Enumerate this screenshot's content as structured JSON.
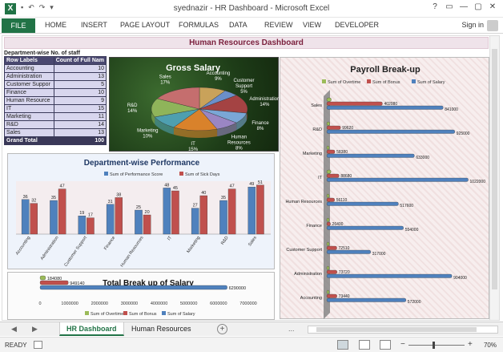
{
  "window": {
    "app_badge": "X",
    "title": "syednazir - HR Dashboard - Microsoft Excel",
    "controls": [
      "?",
      "▭",
      "—",
      "▢",
      "✕"
    ]
  },
  "ribbon": {
    "tabs": [
      "FILE",
      "HOME",
      "INSERT",
      "PAGE LAYOUT",
      "FORMULAS",
      "DATA",
      "REVIEW",
      "VIEW",
      "DEVELOPER"
    ],
    "signin": "Sign in"
  },
  "dashboard": {
    "title": "Human Resources Dashboard"
  },
  "pivot": {
    "caption": "Department-wise No. of staff",
    "header": [
      "Row Labels",
      "Count of Full Nam"
    ],
    "rows": [
      [
        "Accounting",
        "10"
      ],
      [
        "Administration",
        "13"
      ],
      [
        "Customer Suppor",
        "5"
      ],
      [
        "Finance",
        "10"
      ],
      [
        "Human Resource",
        "9"
      ],
      [
        "IT",
        "15"
      ],
      [
        "Marketing",
        "11"
      ],
      [
        "R&D",
        "14"
      ],
      [
        "Sales",
        "13"
      ]
    ],
    "total": [
      "Grand Total",
      "100"
    ]
  },
  "chart_data": [
    {
      "type": "pie",
      "title": "Gross Salary",
      "categories": [
        "Accounting",
        "Customer Support",
        "Administration",
        "Finance",
        "Human Resources",
        "IT",
        "Marketing",
        "R&D",
        "Sales"
      ],
      "values": [
        9,
        5,
        14,
        8,
        8,
        15,
        10,
        14,
        17
      ],
      "labels": [
        "Accounting\n9%",
        "Customer\nSupport\n5%",
        "Administration\n14%",
        "Finance\n8%",
        "Human\nResources\n8%",
        "IT\n15%",
        "Marketing\n10%",
        "R&D\n14%",
        "Sales\n17%"
      ]
    },
    {
      "type": "bar",
      "title": "Department-wise Performance",
      "categories": [
        "Accounting",
        "Administration",
        "Customer Support",
        "Finance",
        "Human Resources",
        "IT",
        "Marketing",
        "R&D",
        "Sales"
      ],
      "series": [
        {
          "name": "Sum of Performance Score",
          "values": [
            36,
            35,
            19,
            31,
            25,
            48,
            27,
            35,
            49
          ],
          "color": "#4f81bd"
        },
        {
          "name": "Sum of Sick Days",
          "values": [
            32,
            47,
            17,
            38,
            20,
            45,
            40,
            47,
            51
          ],
          "color": "#c0504d"
        }
      ],
      "ylim": [
        0,
        55
      ],
      "legend": "top"
    },
    {
      "type": "bar",
      "orientation": "horizontal",
      "title": "Total Break up of Salary",
      "categories": [
        "Total"
      ],
      "series": [
        {
          "name": "Sum of Overtime",
          "values": [
            184080
          ],
          "color": "#9bbb59"
        },
        {
          "name": "Sum of Bonus",
          "values": [
            949140
          ],
          "color": "#c0504d"
        },
        {
          "name": "Sum of Salary",
          "values": [
            6290000
          ],
          "color": "#4f81bd"
        }
      ],
      "xticks": [
        "0",
        "1000000",
        "2000000",
        "3000000",
        "4000000",
        "5000000",
        "6000000",
        "7000000"
      ],
      "xlim": [
        0,
        7000000
      ],
      "legend": "bottom"
    },
    {
      "type": "bar",
      "orientation": "horizontal",
      "title": "Payroll Break-up",
      "categories": [
        "Sales",
        "R&D",
        "Marketing",
        "IT",
        "Human Resources",
        "Finance",
        "Customer Support",
        "Administration",
        "Accounting"
      ],
      "series": [
        {
          "name": "Sum of Overtime",
          "values": [
            32000,
            22000,
            17000,
            30000,
            13000,
            15000,
            11000,
            17000,
            15000
          ],
          "color": "#9bbb59"
        },
        {
          "name": "Sum of Bonus",
          "values": [
            402080,
            99620,
            58380,
            88680,
            56110,
            26400,
            72510,
            73720,
            73440
          ],
          "color": "#c0504d"
        },
        {
          "name": "Sum of Salary",
          "values": [
            841000,
            925000,
            633000,
            1022000,
            517600,
            554000,
            317000,
            904000,
            572000
          ],
          "color": "#4f81bd"
        }
      ],
      "value_labels_shown": [
        [
          "402080",
          "841000"
        ],
        [
          "99620",
          "925000"
        ],
        [
          "58380",
          "633000"
        ],
        [
          "88680",
          "1022000"
        ],
        [
          "56110",
          "517600"
        ],
        [
          "26400",
          "554000"
        ],
        [
          "72510",
          "317000"
        ],
        [
          "73720",
          "904000"
        ],
        [
          "73440",
          "572000"
        ]
      ],
      "xlim": [
        0,
        1100000
      ],
      "legend": "top"
    }
  ],
  "sheet_tabs": {
    "tabs": [
      "HR Dashboard",
      "Human Resources"
    ],
    "active": "HR Dashboard",
    "add": "+",
    "nav": [
      "◀",
      "▶"
    ],
    "more": "..."
  },
  "status": {
    "ready": "READY",
    "zoom": "70%",
    "zoom_minus": "−",
    "zoom_plus": "+"
  }
}
